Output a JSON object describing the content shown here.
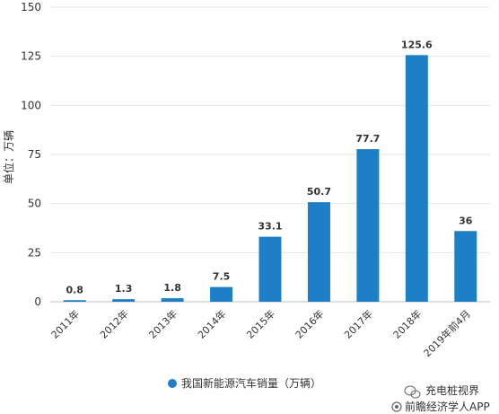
{
  "chart_data": {
    "type": "bar",
    "categories": [
      "2011年",
      "2012年",
      "2013年",
      "2014年",
      "2015年",
      "2016年",
      "2017年",
      "2018年",
      "2019年前4月"
    ],
    "series": [
      {
        "name": "我国新能源汽车销量（万辆）",
        "values": [
          0.8,
          1.3,
          1.8,
          7.5,
          33.1,
          50.7,
          77.7,
          125.6,
          36
        ]
      }
    ],
    "data_labels": [
      "0.8",
      "1.3",
      "1.8",
      "7.5",
      "33.1",
      "50.7",
      "77.7",
      "125.6",
      "36"
    ],
    "ylabel": "单位：万辆",
    "ylim": [
      0,
      150
    ],
    "yticks": [
      "0",
      "25",
      "50",
      "75",
      "100",
      "125",
      "150"
    ],
    "grid": true,
    "legend_position": "bottom",
    "bar_color": "#1f7fc6"
  },
  "watermark": {
    "line1": "充电桩视界",
    "line2": "前瞻经济学人APP"
  }
}
